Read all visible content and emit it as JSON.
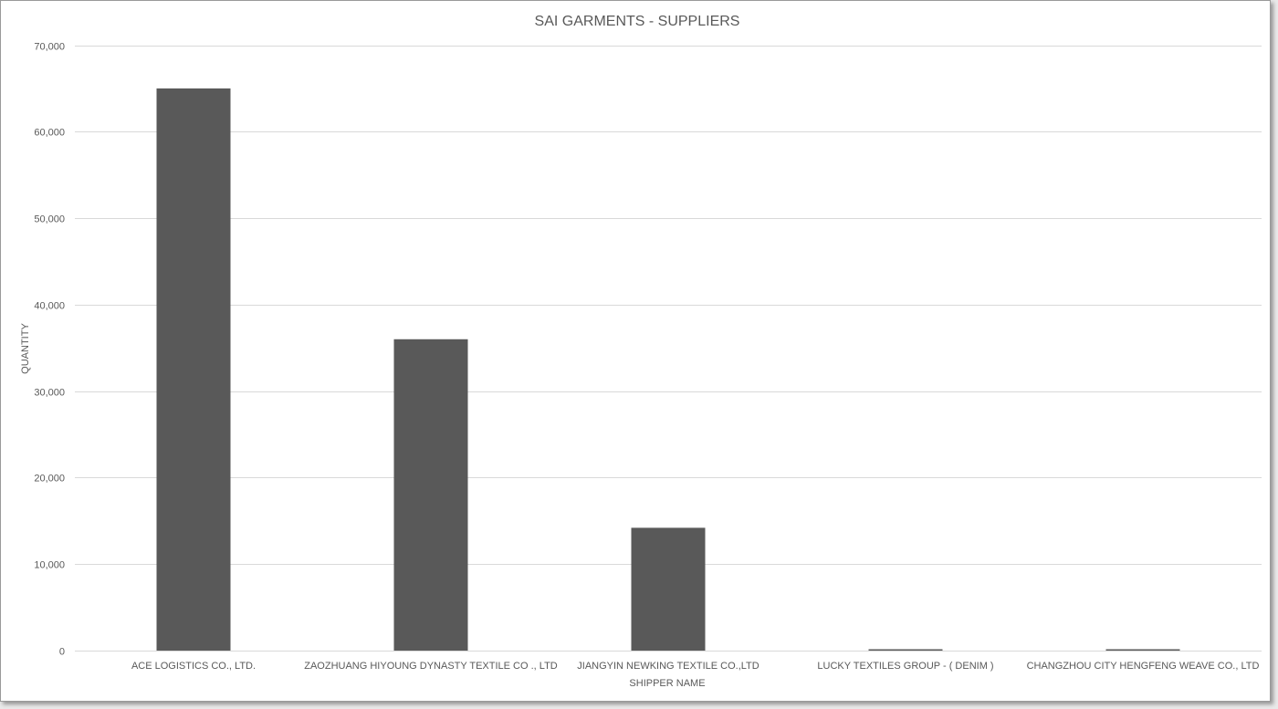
{
  "chart_data": {
    "type": "bar",
    "title": "SAI GARMENTS - SUPPLIERS",
    "xlabel": "SHIPPER NAME",
    "ylabel": "QUANTITY",
    "categories": [
      "ACE LOGISTICS CO., LTD.",
      "ZAOZHUANG HIYOUNG DYNASTY TEXTILE CO ., LTD",
      "JIANGYIN NEWKING TEXTILE CO.,LTD",
      "LUCKY TEXTILES GROUP - ( DENIM )",
      "CHANGZHOU CITY HENGFENG WEAVE CO., LTD"
    ],
    "values": [
      65000,
      36000,
      14200,
      150,
      150
    ],
    "ylim": [
      0,
      70000
    ],
    "yticks": [
      0,
      10000,
      20000,
      30000,
      40000,
      50000,
      60000,
      70000
    ],
    "ytick_labels": [
      "0",
      "10,000",
      "20,000",
      "30,000",
      "40,000",
      "50,000",
      "60,000",
      "70,000"
    ],
    "grid": true,
    "legend": "none",
    "bar_color": "#595959"
  }
}
